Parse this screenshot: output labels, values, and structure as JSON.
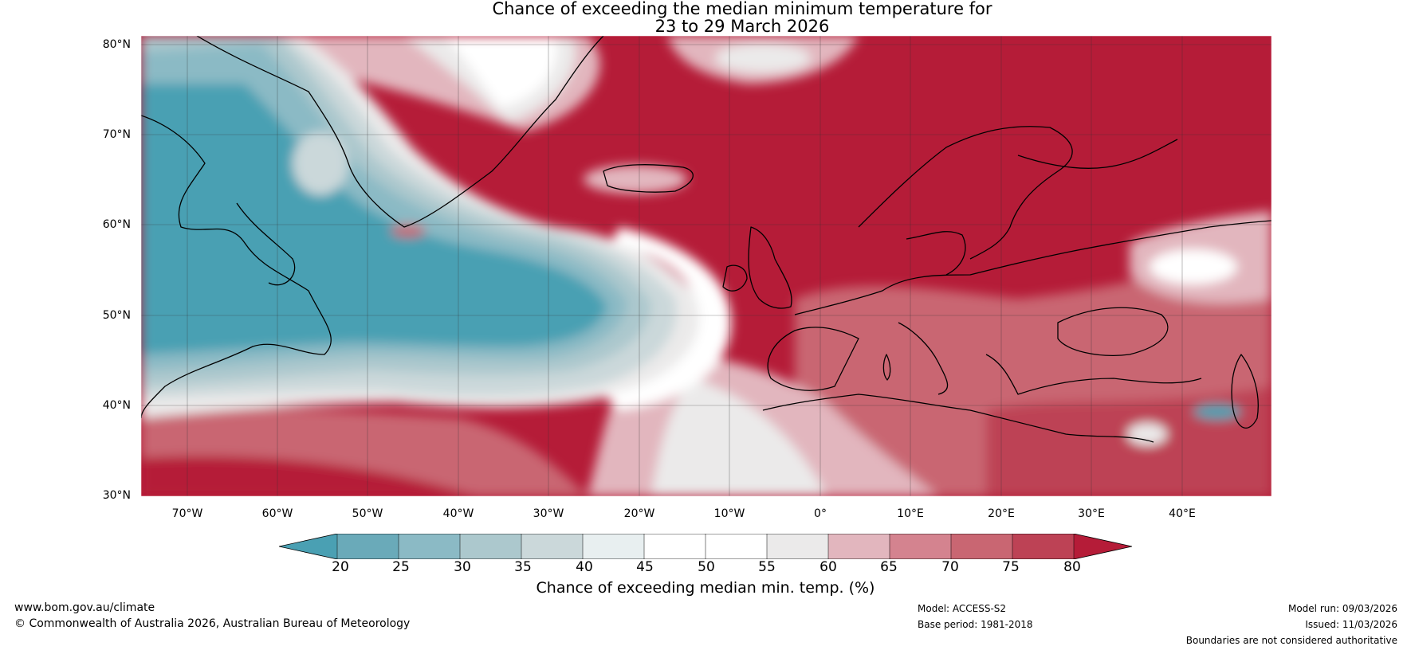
{
  "title_line1": "Chance of exceeding the median minimum temperature for",
  "title_line2": "23 to 29 March 2026",
  "lat_labels": [
    "80°N",
    "70°N",
    "60°N",
    "50°N",
    "40°N",
    "30°N"
  ],
  "lon_labels": [
    "70°W",
    "60°W",
    "50°W",
    "40°W",
    "30°W",
    "20°W",
    "10°W",
    "0°",
    "10°E",
    "20°E",
    "30°E",
    "40°E"
  ],
  "colorbar": {
    "ticks": [
      "20",
      "25",
      "30",
      "35",
      "40",
      "45",
      "50",
      "55",
      "60",
      "65",
      "70",
      "75",
      "80"
    ],
    "colors": [
      "#4aa0b3",
      "#6aaab9",
      "#8bbac5",
      "#acc8cd",
      "#cbd8da",
      "#e8eff0",
      "#ffffff",
      "#ffffff",
      "#ebeaea",
      "#e2b6be",
      "#d4838f",
      "#c96672",
      "#bd4255",
      "#b51c38"
    ],
    "label": "Chance of exceeding median min. temp. (%)"
  },
  "colors": {
    "high": "#b51c38",
    "mid_high": "#c96672",
    "light_high": "#e2b6be",
    "neutral": "#ffffff",
    "light_low": "#acc8cd",
    "low": "#4aa0b3"
  },
  "footer": {
    "website": "www.bom.gov.au/climate",
    "copyright": "© Commonwealth of Australia 2026, Australian Bureau of Meteorology",
    "model": "Model: ACCESS-S2",
    "base_period": "Base period: 1981-2018",
    "model_run": "Model run: 09/03/2026",
    "issued": "Issued: 11/03/2026",
    "disclaimer": "Boundaries are not considered authoritative"
  }
}
